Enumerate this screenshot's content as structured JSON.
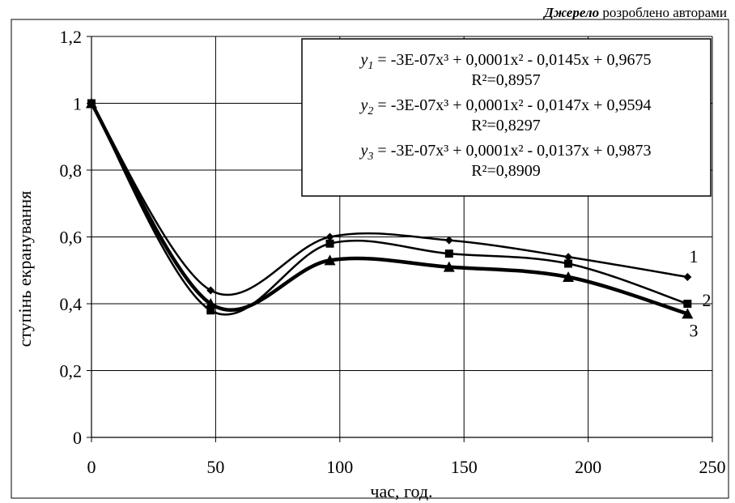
{
  "source_note": {
    "bold": "Джерело",
    "rest": " розроблено авторами"
  },
  "chart_data": {
    "type": "line",
    "title": "",
    "xlabel": "час, год.",
    "ylabel": "ступінь екранування",
    "xlim": [
      0,
      250
    ],
    "ylim": [
      0,
      1.2
    ],
    "x_ticks": [
      "0",
      "50",
      "100",
      "150",
      "200",
      "250"
    ],
    "y_ticks": [
      "0",
      "0,2",
      "0,4",
      "0,6",
      "0,8",
      "1",
      "1,2"
    ],
    "grid": true,
    "x": [
      0,
      48,
      96,
      144,
      192,
      240
    ],
    "series": [
      {
        "name": "1",
        "marker": "diamond",
        "values": [
          1.0,
          0.44,
          0.6,
          0.59,
          0.54,
          0.48
        ]
      },
      {
        "name": "2",
        "marker": "square",
        "values": [
          1.0,
          0.38,
          0.58,
          0.55,
          0.52,
          0.4
        ]
      },
      {
        "name": "3",
        "marker": "triangle",
        "values": [
          1.0,
          0.4,
          0.53,
          0.51,
          0.48,
          0.37
        ]
      }
    ],
    "equations": [
      {
        "lhs": "y",
        "sub": "1",
        "formula": " = -3E-07x³ + 0,0001x² - 0,0145x + 0,9675",
        "r2": "R²=0,8957"
      },
      {
        "lhs": "y",
        "sub": "2",
        "formula": " = -3E-07x³ + 0,0001x² - 0,0147x + 0,9594",
        "r2": "R²=0,8297"
      },
      {
        "lhs": "y",
        "sub": "3",
        "formula": " = -3E-07x³ + 0,0001x² - 0,0137x + 0,9873",
        "r2": "R²=0,8909"
      }
    ]
  }
}
